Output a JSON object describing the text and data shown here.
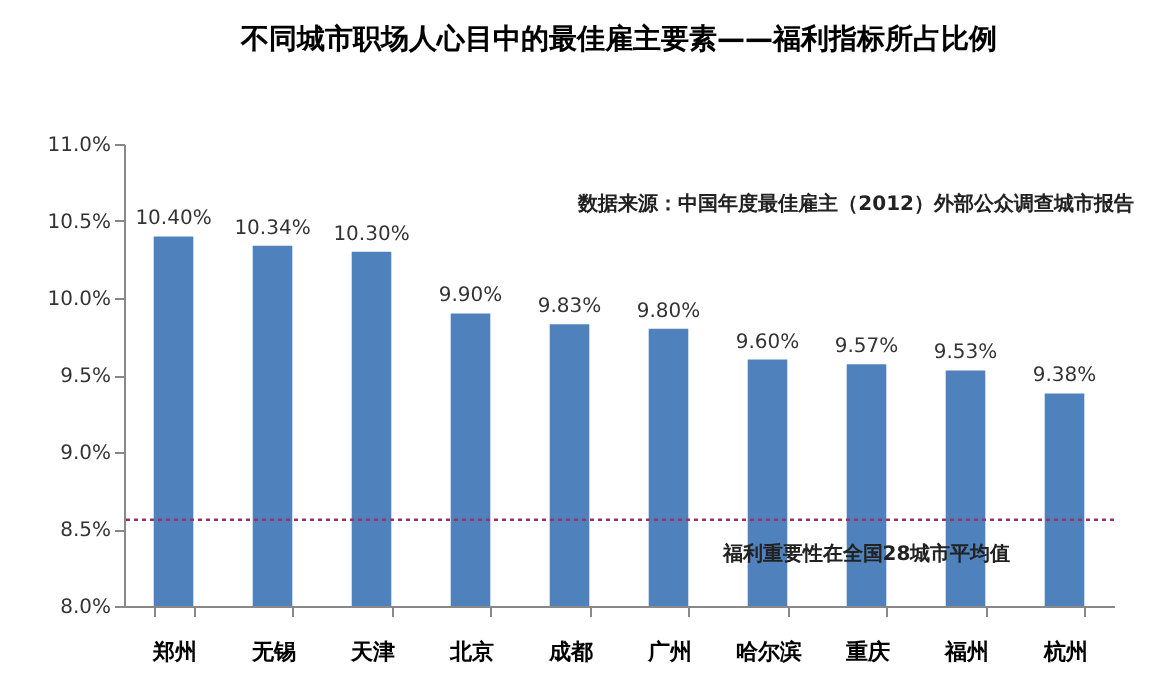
{
  "chart_data": {
    "type": "bar",
    "title": "不同城市职场人心目中的最佳雇主要素——福利指标所占比例",
    "categories": [
      "郑州",
      "无锡",
      "天津",
      "北京",
      "成都",
      "广州",
      "哈尔滨",
      "重庆",
      "福州",
      "杭州"
    ],
    "values": [
      10.4,
      10.34,
      10.3,
      9.9,
      9.83,
      9.8,
      9.6,
      9.57,
      9.53,
      9.38
    ],
    "value_labels": [
      "10.40%",
      "10.34%",
      "10.30%",
      "9.90%",
      "9.83%",
      "9.80%",
      "9.60%",
      "9.57%",
      "9.53%",
      "9.38%"
    ],
    "color": "#4f81bd",
    "ylim": [
      8.0,
      11.0
    ],
    "yticks": [
      {
        "value": 8.0,
        "label": "8.0%"
      },
      {
        "value": 8.5,
        "label": "8.5%"
      },
      {
        "value": 9.0,
        "label": "9.0%"
      },
      {
        "value": 9.5,
        "label": "9.5%"
      },
      {
        "value": 10.0,
        "label": "10.0%"
      },
      {
        "value": 10.5,
        "label": "10.5%"
      },
      {
        "value": 11.0,
        "label": "11.0%"
      }
    ],
    "grid": false,
    "ref_lines": [
      {
        "axis": "y",
        "value": 8.56,
        "label": "福利重要性在全国28城市平均值",
        "color": "#993366",
        "line_style": "dotted"
      }
    ],
    "annotations": [
      "数据来源：中国年度最佳雇主（2012）外部公众调查城市报告"
    ]
  }
}
